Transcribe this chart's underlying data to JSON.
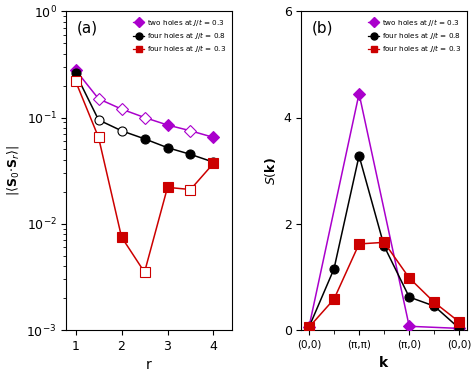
{
  "panel_a": {
    "title": "(a)",
    "xlabel": "r",
    "ylim": [
      0.001,
      1.0
    ],
    "xlim": [
      0.8,
      4.4
    ],
    "xticks": [
      1,
      2,
      3,
      4
    ],
    "series": [
      {
        "label": "two holes at $J/t$ = 0.3",
        "color": "#aa00cc",
        "x": [
          1,
          1.5,
          2,
          2.5,
          3,
          3.5,
          4
        ],
        "y": [
          0.28,
          0.15,
          0.12,
          0.1,
          0.085,
          0.075,
          0.065
        ],
        "filled": [
          1,
          0,
          0,
          0,
          1,
          0,
          1
        ]
      },
      {
        "label": "four holes at $J/t$ = 0.8",
        "color": "#000000",
        "x": [
          1,
          1.5,
          2,
          2.5,
          3,
          3.5,
          4
        ],
        "y": [
          0.26,
          0.095,
          0.075,
          0.063,
          0.052,
          0.045,
          0.038
        ],
        "filled": [
          1,
          0,
          0,
          1,
          1,
          1,
          0
        ]
      },
      {
        "label": "four holes at $J/t$ = 0.3",
        "color": "#cc0000",
        "x": [
          1,
          1.5,
          2,
          2.5,
          3,
          3.5,
          4
        ],
        "y": [
          0.22,
          0.065,
          0.0075,
          0.0035,
          0.022,
          0.021,
          0.037
        ],
        "filled": [
          0,
          0,
          1,
          0,
          1,
          0,
          1
        ]
      }
    ]
  },
  "panel_b": {
    "title": "(b)",
    "ylim": [
      0,
      6.0
    ],
    "yticks": [
      0.0,
      2.0,
      4.0,
      6.0
    ],
    "k_labels": [
      "(0,0)",
      "(π,π)",
      "(π,0)",
      "(0,0)"
    ],
    "k_ticks": [
      0,
      1,
      2,
      3
    ],
    "series": [
      {
        "label": "two holes at $J/t$ = 0.3",
        "color": "#aa00cc",
        "marker": "D",
        "x": [
          0,
          1,
          2,
          3
        ],
        "y": [
          0.05,
          4.45,
          0.07,
          0.03
        ]
      },
      {
        "label": "four holes at $J/t$ = 0.8",
        "color": "#000000",
        "marker": "o",
        "x": [
          0,
          0.5,
          1,
          1.5,
          2,
          2.5,
          3
        ],
        "y": [
          0.05,
          1.15,
          3.28,
          1.58,
          0.62,
          0.45,
          0.03
        ]
      },
      {
        "label": "four holes at $J/t$ = 0.3",
        "color": "#cc0000",
        "marker": "s",
        "x": [
          0,
          0.5,
          1,
          1.5,
          2,
          2.5,
          3
        ],
        "y": [
          0.05,
          0.58,
          1.62,
          1.65,
          0.98,
          0.52,
          0.15
        ]
      }
    ]
  },
  "legend": {
    "labels": [
      "two holes at $J/t$ = 0.3",
      "four holes at $J/t$ = 0.8",
      "four holes at $J/t$ = 0.3"
    ],
    "colors": [
      "#aa00cc",
      "#000000",
      "#cc0000"
    ],
    "markers": [
      "D",
      "o",
      "s"
    ]
  }
}
